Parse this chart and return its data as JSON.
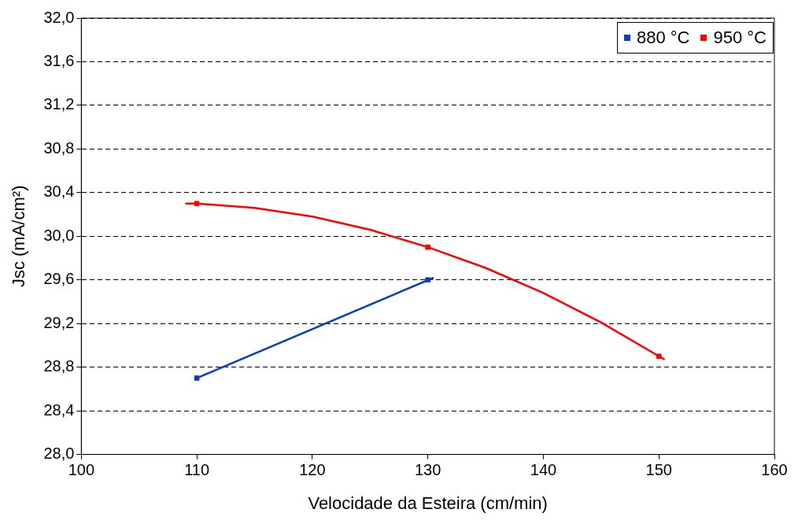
{
  "chart_data": {
    "type": "scatter",
    "xlabel": "Velocidade da Esteira (cm/min)",
    "ylabel": "Jsc (mA/cm²)",
    "xlim": [
      100,
      160
    ],
    "xticks": [
      100,
      110,
      120,
      130,
      140,
      150,
      160
    ],
    "ylim": [
      28.0,
      32.0
    ],
    "yticks": [
      {
        "value": 28.0,
        "label": "28,0"
      },
      {
        "value": 28.4,
        "label": "28,4"
      },
      {
        "value": 28.8,
        "label": "28,8"
      },
      {
        "value": 29.2,
        "label": "29,2"
      },
      {
        "value": 29.6,
        "label": "29,6"
      },
      {
        "value": 30.0,
        "label": "30,0"
      },
      {
        "value": 30.4,
        "label": "30,4"
      },
      {
        "value": 30.8,
        "label": "30,8"
      },
      {
        "value": 31.2,
        "label": "31,2"
      },
      {
        "value": 31.6,
        "label": "31,6"
      },
      {
        "value": 32.0,
        "label": "32,0"
      }
    ],
    "grid": "y",
    "legend": "top right",
    "marker": "square",
    "series": [
      {
        "name": "880 °C",
        "color": "#0a3fc0",
        "x": [
          110,
          130
        ],
        "values": [
          28.7,
          29.6
        ]
      },
      {
        "name": "950 °C",
        "color": "#ff0000",
        "x": [
          110,
          130,
          150
        ],
        "values": [
          30.3,
          29.9,
          28.9
        ]
      },
      {
        "type": "line",
        "marker": "none",
        "color": "#0a3fc0",
        "x": [
          110,
          130.5
        ],
        "values": [
          28.7,
          29.62
        ]
      },
      {
        "type": "line",
        "marker": "none",
        "color": "#ff0000",
        "x": [
          109,
          110,
          115,
          120,
          125,
          130,
          135,
          140,
          145,
          150.5
        ],
        "values": [
          30.3,
          30.3,
          30.26,
          30.18,
          30.06,
          29.9,
          29.71,
          29.48,
          29.21,
          28.87
        ]
      }
    ]
  }
}
